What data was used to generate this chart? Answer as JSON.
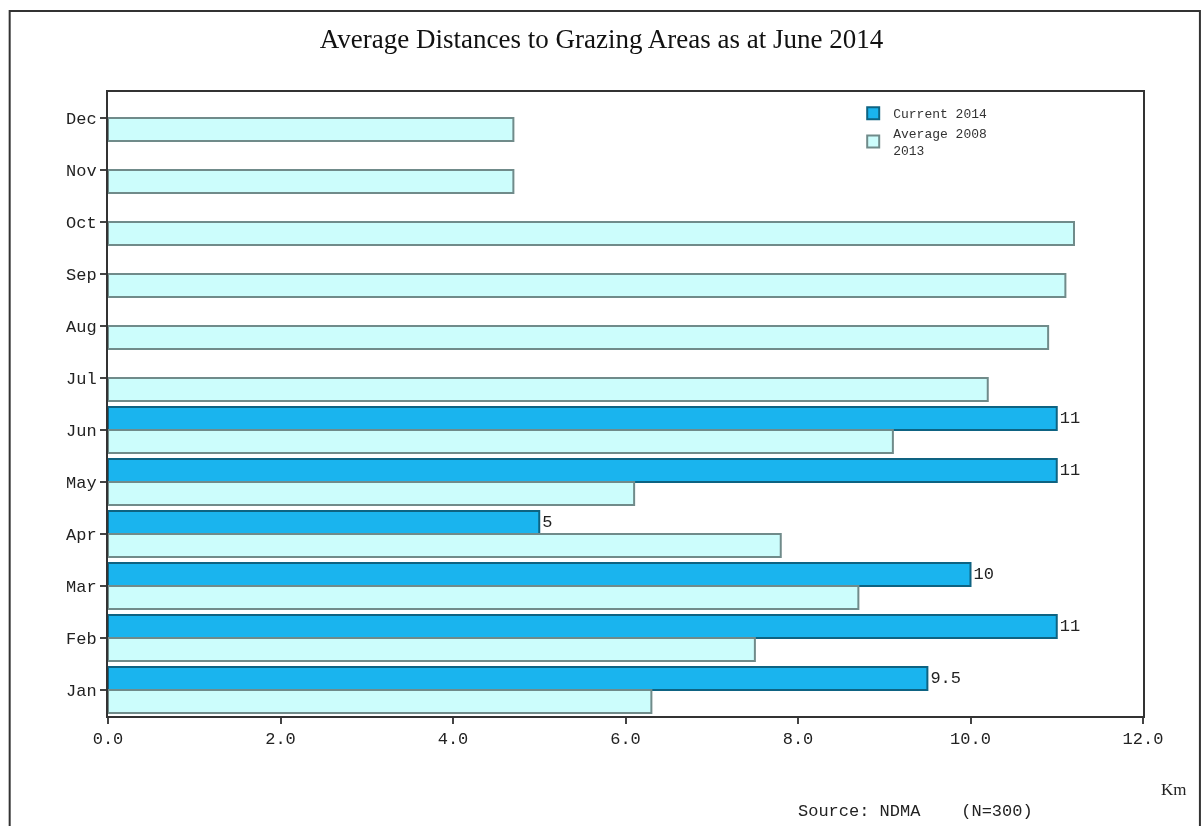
{
  "chart_data": {
    "type": "bar",
    "orientation": "horizontal",
    "title": "Average Distances to Grazing Areas as at June 2014",
    "xlabel": "Km",
    "categories": [
      "Dec",
      "Nov",
      "Oct",
      "Sep",
      "Aug",
      "Jul",
      "Jun",
      "May",
      "Apr",
      "Mar",
      "Feb",
      "Jan"
    ],
    "series": [
      {
        "name": "Current 2014",
        "color": "#1ab4ee",
        "values": [
          null,
          null,
          null,
          null,
          null,
          null,
          11,
          11,
          5,
          10,
          11,
          9.5
        ],
        "value_labels": [
          null,
          null,
          null,
          null,
          null,
          null,
          "11",
          "11",
          "5",
          "10",
          "11",
          "9.5"
        ]
      },
      {
        "name": "Average 2008\n2013",
        "color": "#ccfdfc",
        "values": [
          4.7,
          4.7,
          11.2,
          11.1,
          10.9,
          10.2,
          9.1,
          6.1,
          7.8,
          8.7,
          7.5,
          6.3
        ]
      }
    ],
    "xlim": [
      0,
      12
    ],
    "xticks": [
      {
        "value": 0,
        "label": "0.0"
      },
      {
        "value": 2,
        "label": "2.0"
      },
      {
        "value": 4,
        "label": "4.0"
      },
      {
        "value": 6,
        "label": "6.0"
      },
      {
        "value": 8,
        "label": "8.0"
      },
      {
        "value": 10,
        "label": "10.0"
      },
      {
        "value": 12,
        "label": "12.0"
      }
    ],
    "legend": "top right",
    "grid": false,
    "annotations": [
      "Source: NDMA    (N=300)"
    ]
  }
}
